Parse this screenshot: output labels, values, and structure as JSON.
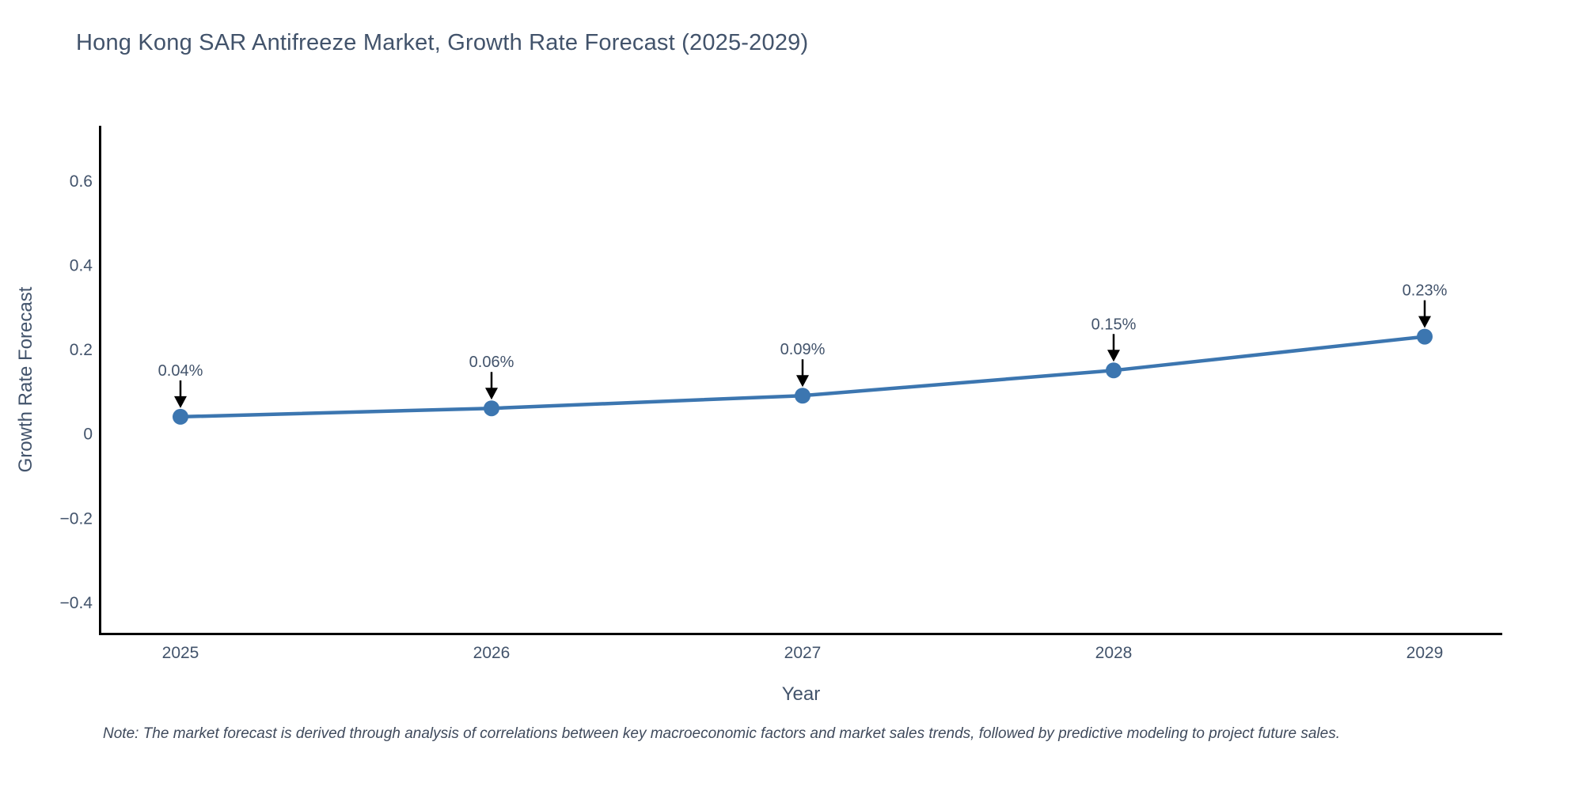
{
  "title": "Hong Kong SAR Antifreeze Market, Growth Rate Forecast (2025-2029)",
  "note": "Note: The market forecast is derived through analysis of correlations between key macroeconomic factors and market sales trends, followed by predictive modeling to project future sales.",
  "chart_data": {
    "type": "line",
    "title": "Hong Kong SAR Antifreeze Market, Growth Rate Forecast (2025-2029)",
    "xlabel": "Year",
    "ylabel": "Growth Rate Forecast",
    "categories": [
      "2025",
      "2026",
      "2027",
      "2028",
      "2029"
    ],
    "values": [
      0.04,
      0.06,
      0.09,
      0.15,
      0.23
    ],
    "point_labels": [
      "0.04%",
      "0.06%",
      "0.09%",
      "0.15%",
      "0.23%"
    ],
    "yticks": [
      0.6,
      0.4,
      0.2,
      0,
      -0.2,
      -0.4
    ],
    "ytick_labels": [
      "0.6",
      "0.4",
      "0.2",
      "0",
      "−0.2",
      "−0.4"
    ],
    "ylim": [
      -0.475,
      0.73
    ],
    "grid": false,
    "legend": "none",
    "annotations_have_arrows": true,
    "colors": {
      "line": "#3c76b0",
      "marker": "#3c76b0",
      "arrow": "#000000",
      "axis": "#000000",
      "text": "#42536b",
      "note": "#3f4a5c",
      "background": "#ffffff"
    }
  }
}
